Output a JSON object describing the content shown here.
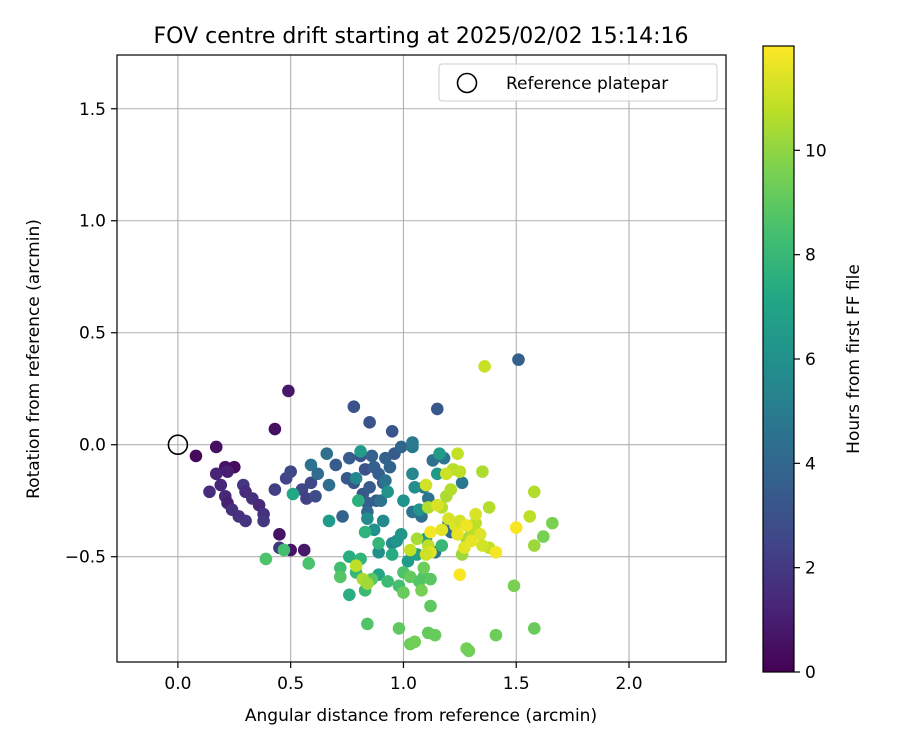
{
  "chart_data": {
    "type": "scatter",
    "title": "FOV centre drift starting at 2025/02/02 15:14:16",
    "xlabel": "Angular distance from reference (arcmin)",
    "ylabel": "Rotation from reference (arcmin)",
    "xlim": [
      -0.27,
      2.43
    ],
    "ylim": [
      -0.97,
      1.74
    ],
    "xticks": [
      0.0,
      0.5,
      1.0,
      1.5,
      2.0
    ],
    "xtick_labels": [
      "0.0",
      "0.5",
      "1.0",
      "1.5",
      "2.0"
    ],
    "yticks": [
      -0.5,
      0.0,
      0.5,
      1.0,
      1.5
    ],
    "ytick_labels": [
      "−0.5",
      "0.0",
      "0.5",
      "1.0",
      "1.5"
    ],
    "grid": true,
    "legend": {
      "placement": "top-right",
      "entries": [
        {
          "label": "Reference platepar",
          "marker": "open-circle"
        }
      ]
    },
    "reference_point": {
      "x": 0.0,
      "y": 0.0,
      "label": "Reference platepar"
    },
    "colorbar": {
      "label": "Hours from first FF file",
      "colormap": "viridis",
      "range": [
        0,
        12
      ],
      "ticks": [
        0,
        2,
        4,
        6,
        8,
        10
      ],
      "tick_labels": [
        "0",
        "2",
        "4",
        "6",
        "8",
        "10"
      ]
    },
    "colors": {
      "grid": "#b0b0b0",
      "axes": "#000000"
    },
    "points": [
      {
        "x": 0.08,
        "y": -0.05,
        "h": 0.3
      },
      {
        "x": 0.17,
        "y": -0.01,
        "h": 0.5
      },
      {
        "x": 0.21,
        "y": -0.1,
        "h": 0.6
      },
      {
        "x": 0.25,
        "y": -0.1,
        "h": 0.4
      },
      {
        "x": 0.43,
        "y": 0.07,
        "h": 0.5
      },
      {
        "x": 0.49,
        "y": 0.24,
        "h": 0.8
      },
      {
        "x": 0.45,
        "y": -0.4,
        "h": 0.6
      },
      {
        "x": 0.5,
        "y": -0.47,
        "h": 0.7
      },
      {
        "x": 0.56,
        "y": -0.47,
        "h": 0.8
      },
      {
        "x": 0.17,
        "y": -0.13,
        "h": 1.2
      },
      {
        "x": 0.14,
        "y": -0.21,
        "h": 1.5
      },
      {
        "x": 0.19,
        "y": -0.18,
        "h": 1.3
      },
      {
        "x": 0.21,
        "y": -0.23,
        "h": 1.4
      },
      {
        "x": 0.22,
        "y": -0.26,
        "h": 1.1
      },
      {
        "x": 0.24,
        "y": -0.29,
        "h": 1.6
      },
      {
        "x": 0.27,
        "y": -0.32,
        "h": 1.7
      },
      {
        "x": 0.3,
        "y": -0.34,
        "h": 1.8
      },
      {
        "x": 0.29,
        "y": -0.18,
        "h": 1.9
      },
      {
        "x": 0.3,
        "y": -0.21,
        "h": 1.5
      },
      {
        "x": 0.33,
        "y": -0.24,
        "h": 1.6
      },
      {
        "x": 0.36,
        "y": -0.27,
        "h": 1.4
      },
      {
        "x": 0.38,
        "y": -0.31,
        "h": 1.7
      },
      {
        "x": 0.38,
        "y": -0.34,
        "h": 1.9
      },
      {
        "x": 0.22,
        "y": -0.12,
        "h": 1.0
      },
      {
        "x": 0.45,
        "y": -0.46,
        "h": 1.9
      },
      {
        "x": 0.43,
        "y": -0.2,
        "h": 2.2
      },
      {
        "x": 0.48,
        "y": -0.15,
        "h": 2.4
      },
      {
        "x": 0.5,
        "y": -0.12,
        "h": 2.6
      },
      {
        "x": 0.55,
        "y": -0.2,
        "h": 2.5
      },
      {
        "x": 0.57,
        "y": -0.24,
        "h": 2.3
      },
      {
        "x": 0.59,
        "y": -0.17,
        "h": 2.6
      },
      {
        "x": 0.61,
        "y": -0.23,
        "h": 2.8
      },
      {
        "x": 0.78,
        "y": 0.17,
        "h": 3.0
      },
      {
        "x": 0.85,
        "y": 0.1,
        "h": 3.1
      },
      {
        "x": 0.95,
        "y": 0.06,
        "h": 3.2
      },
      {
        "x": 1.15,
        "y": 0.16,
        "h": 3.3
      },
      {
        "x": 1.51,
        "y": 0.38,
        "h": 3.6
      },
      {
        "x": 0.7,
        "y": -0.09,
        "h": 3.4
      },
      {
        "x": 0.76,
        "y": -0.06,
        "h": 3.5
      },
      {
        "x": 0.75,
        "y": -0.15,
        "h": 3.3
      },
      {
        "x": 0.78,
        "y": -0.17,
        "h": 3.2
      },
      {
        "x": 0.81,
        "y": -0.05,
        "h": 3.1
      },
      {
        "x": 0.83,
        "y": -0.11,
        "h": 3.0
      },
      {
        "x": 0.82,
        "y": -0.22,
        "h": 3.3
      },
      {
        "x": 0.85,
        "y": -0.19,
        "h": 3.4
      },
      {
        "x": 0.84,
        "y": -0.26,
        "h": 3.5
      },
      {
        "x": 0.87,
        "y": -0.1,
        "h": 3.6
      },
      {
        "x": 0.86,
        "y": -0.05,
        "h": 3.7
      },
      {
        "x": 0.89,
        "y": -0.13,
        "h": 3.6
      },
      {
        "x": 0.92,
        "y": -0.06,
        "h": 3.8
      },
      {
        "x": 0.94,
        "y": -0.1,
        "h": 3.9
      },
      {
        "x": 0.91,
        "y": -0.17,
        "h": 3.7
      },
      {
        "x": 0.88,
        "y": -0.25,
        "h": 3.5
      },
      {
        "x": 0.96,
        "y": -0.04,
        "h": 3.4
      },
      {
        "x": 0.99,
        "y": -0.01,
        "h": 3.9
      },
      {
        "x": 0.73,
        "y": -0.32,
        "h": 3.8
      },
      {
        "x": 0.62,
        "y": -0.13,
        "h": 4.2
      },
      {
        "x": 0.67,
        "y": -0.18,
        "h": 4.3
      },
      {
        "x": 0.66,
        "y": -0.04,
        "h": 4.4
      },
      {
        "x": 0.59,
        "y": -0.09,
        "h": 4.5
      },
      {
        "x": 0.84,
        "y": -0.3,
        "h": 4.1
      },
      {
        "x": 0.9,
        "y": -0.25,
        "h": 4.5
      },
      {
        "x": 0.92,
        "y": -0.16,
        "h": 4.6
      },
      {
        "x": 1.04,
        "y": -0.01,
        "h": 4.8
      },
      {
        "x": 1.04,
        "y": 0.01,
        "h": 4.9
      },
      {
        "x": 1.09,
        "y": -0.19,
        "h": 4.7
      },
      {
        "x": 1.11,
        "y": -0.24,
        "h": 4.6
      },
      {
        "x": 1.13,
        "y": -0.07,
        "h": 4.4
      },
      {
        "x": 1.18,
        "y": -0.06,
        "h": 4.7
      },
      {
        "x": 1.26,
        "y": -0.17,
        "h": 4.8
      },
      {
        "x": 1.2,
        "y": -0.35,
        "h": 4.5
      },
      {
        "x": 1.21,
        "y": -0.39,
        "h": 4.3
      },
      {
        "x": 1.04,
        "y": -0.3,
        "h": 4.6
      },
      {
        "x": 1.08,
        "y": -0.32,
        "h": 4.4
      },
      {
        "x": 1.14,
        "y": -0.48,
        "h": 4.8
      },
      {
        "x": 0.67,
        "y": -0.34,
        "h": 6.5
      },
      {
        "x": 0.79,
        "y": -0.15,
        "h": 5.5
      },
      {
        "x": 0.81,
        "y": -0.03,
        "h": 6.6
      },
      {
        "x": 0.84,
        "y": -0.33,
        "h": 5.8
      },
      {
        "x": 0.87,
        "y": -0.38,
        "h": 6.0
      },
      {
        "x": 0.89,
        "y": -0.48,
        "h": 5.9
      },
      {
        "x": 0.91,
        "y": -0.34,
        "h": 5.7
      },
      {
        "x": 0.93,
        "y": -0.21,
        "h": 6.1
      },
      {
        "x": 0.95,
        "y": -0.44,
        "h": 5.6
      },
      {
        "x": 0.97,
        "y": -0.43,
        "h": 6.2
      },
      {
        "x": 0.99,
        "y": -0.4,
        "h": 6.3
      },
      {
        "x": 1.0,
        "y": -0.25,
        "h": 6.0
      },
      {
        "x": 1.04,
        "y": -0.13,
        "h": 5.4
      },
      {
        "x": 1.05,
        "y": -0.19,
        "h": 5.9
      },
      {
        "x": 1.07,
        "y": -0.29,
        "h": 6.2
      },
      {
        "x": 1.02,
        "y": -0.52,
        "h": 6.5
      },
      {
        "x": 1.1,
        "y": -0.42,
        "h": 6.7
      },
      {
        "x": 1.06,
        "y": -0.49,
        "h": 6.8
      },
      {
        "x": 1.15,
        "y": -0.13,
        "h": 6.4
      },
      {
        "x": 1.16,
        "y": -0.04,
        "h": 6.6
      },
      {
        "x": 0.89,
        "y": -0.58,
        "h": 7.0
      },
      {
        "x": 0.51,
        "y": -0.22,
        "h": 7.2
      },
      {
        "x": 0.58,
        "y": -0.53,
        "h": 8.5
      },
      {
        "x": 0.39,
        "y": -0.51,
        "h": 8.6
      },
      {
        "x": 0.47,
        "y": -0.47,
        "h": 8.4
      },
      {
        "x": 0.72,
        "y": -0.55,
        "h": 8.3
      },
      {
        "x": 0.72,
        "y": -0.59,
        "h": 8.8
      },
      {
        "x": 0.76,
        "y": -0.5,
        "h": 7.4
      },
      {
        "x": 0.76,
        "y": -0.67,
        "h": 7.5
      },
      {
        "x": 0.79,
        "y": -0.57,
        "h": 8.0
      },
      {
        "x": 0.8,
        "y": -0.25,
        "h": 7.6
      },
      {
        "x": 0.81,
        "y": -0.51,
        "h": 7.8
      },
      {
        "x": 0.83,
        "y": -0.39,
        "h": 7.7
      },
      {
        "x": 0.83,
        "y": -0.65,
        "h": 8.1
      },
      {
        "x": 0.84,
        "y": -0.8,
        "h": 8.7
      },
      {
        "x": 0.86,
        "y": -0.6,
        "h": 8.9
      },
      {
        "x": 0.89,
        "y": -0.44,
        "h": 7.9
      },
      {
        "x": 0.93,
        "y": -0.61,
        "h": 8.2
      },
      {
        "x": 0.95,
        "y": -0.49,
        "h": 7.3
      },
      {
        "x": 0.98,
        "y": -0.63,
        "h": 8.4
      },
      {
        "x": 0.98,
        "y": -0.82,
        "h": 9.0
      },
      {
        "x": 1.0,
        "y": -0.57,
        "h": 8.6
      },
      {
        "x": 1.0,
        "y": -0.66,
        "h": 9.2
      },
      {
        "x": 1.03,
        "y": -0.59,
        "h": 9.1
      },
      {
        "x": 1.03,
        "y": -0.89,
        "h": 9.3
      },
      {
        "x": 1.05,
        "y": -0.88,
        "h": 9.4
      },
      {
        "x": 1.07,
        "y": -0.61,
        "h": 8.8
      },
      {
        "x": 1.09,
        "y": -0.59,
        "h": 8.7
      },
      {
        "x": 1.11,
        "y": -0.84,
        "h": 9.1
      },
      {
        "x": 1.12,
        "y": -0.6,
        "h": 8.9
      },
      {
        "x": 1.12,
        "y": -0.72,
        "h": 9.0
      },
      {
        "x": 1.14,
        "y": -0.85,
        "h": 9.2
      },
      {
        "x": 1.17,
        "y": -0.45,
        "h": 8.0
      },
      {
        "x": 1.28,
        "y": -0.91,
        "h": 9.5
      },
      {
        "x": 1.29,
        "y": -0.92,
        "h": 9.4
      },
      {
        "x": 1.09,
        "y": -0.55,
        "h": 9.3
      },
      {
        "x": 1.41,
        "y": -0.85,
        "h": 9.3
      },
      {
        "x": 1.49,
        "y": -0.63,
        "h": 9.6
      },
      {
        "x": 1.58,
        "y": -0.82,
        "h": 9.2
      },
      {
        "x": 1.62,
        "y": -0.41,
        "h": 9.5
      },
      {
        "x": 1.66,
        "y": -0.35,
        "h": 9.6
      },
      {
        "x": 1.08,
        "y": -0.65,
        "h": 9.5
      },
      {
        "x": 0.79,
        "y": -0.54,
        "h": 10.8
      },
      {
        "x": 0.82,
        "y": -0.6,
        "h": 10.5
      },
      {
        "x": 0.84,
        "y": -0.62,
        "h": 10.3
      },
      {
        "x": 1.03,
        "y": -0.47,
        "h": 10.9
      },
      {
        "x": 1.06,
        "y": -0.42,
        "h": 10.4
      },
      {
        "x": 1.11,
        "y": -0.28,
        "h": 10.6
      },
      {
        "x": 1.11,
        "y": -0.45,
        "h": 10.8
      },
      {
        "x": 1.17,
        "y": -0.28,
        "h": 10.7
      },
      {
        "x": 1.19,
        "y": -0.23,
        "h": 10.5
      },
      {
        "x": 1.21,
        "y": -0.2,
        "h": 10.6
      },
      {
        "x": 1.22,
        "y": -0.11,
        "h": 10.7
      },
      {
        "x": 1.24,
        "y": -0.04,
        "h": 10.9
      },
      {
        "x": 1.25,
        "y": -0.12,
        "h": 10.8
      },
      {
        "x": 1.26,
        "y": -0.49,
        "h": 10.2
      },
      {
        "x": 1.28,
        "y": -0.42,
        "h": 10.4
      },
      {
        "x": 1.3,
        "y": -0.38,
        "h": 10.7
      },
      {
        "x": 1.32,
        "y": -0.35,
        "h": 10.8
      },
      {
        "x": 1.35,
        "y": -0.12,
        "h": 10.5
      },
      {
        "x": 1.36,
        "y": 0.35,
        "h": 11.0
      },
      {
        "x": 1.38,
        "y": -0.28,
        "h": 10.6
      },
      {
        "x": 1.38,
        "y": -0.46,
        "h": 10.9
      },
      {
        "x": 1.56,
        "y": -0.32,
        "h": 10.8
      },
      {
        "x": 1.58,
        "y": -0.21,
        "h": 10.6
      },
      {
        "x": 1.58,
        "y": -0.45,
        "h": 10.2
      },
      {
        "x": 1.1,
        "y": -0.18,
        "h": 11.2
      },
      {
        "x": 1.12,
        "y": -0.39,
        "h": 11.8
      },
      {
        "x": 1.12,
        "y": -0.48,
        "h": 11.4
      },
      {
        "x": 1.15,
        "y": -0.27,
        "h": 11.3
      },
      {
        "x": 1.17,
        "y": -0.38,
        "h": 11.5
      },
      {
        "x": 1.19,
        "y": -0.13,
        "h": 11.1
      },
      {
        "x": 1.2,
        "y": -0.33,
        "h": 11.3
      },
      {
        "x": 1.23,
        "y": -0.36,
        "h": 11.4
      },
      {
        "x": 1.24,
        "y": -0.4,
        "h": 11.6
      },
      {
        "x": 1.25,
        "y": -0.34,
        "h": 11.2
      },
      {
        "x": 1.25,
        "y": -0.58,
        "h": 11.9
      },
      {
        "x": 1.27,
        "y": -0.46,
        "h": 11.5
      },
      {
        "x": 1.28,
        "y": -0.36,
        "h": 11.7
      },
      {
        "x": 1.3,
        "y": -0.43,
        "h": 11.6
      },
      {
        "x": 1.32,
        "y": -0.31,
        "h": 11.3
      },
      {
        "x": 1.34,
        "y": -0.4,
        "h": 11.4
      },
      {
        "x": 1.35,
        "y": -0.45,
        "h": 11.2
      },
      {
        "x": 1.41,
        "y": -0.48,
        "h": 11.8
      },
      {
        "x": 1.5,
        "y": -0.37,
        "h": 11.9
      },
      {
        "x": 1.1,
        "y": -0.49,
        "h": 11.1
      }
    ]
  }
}
